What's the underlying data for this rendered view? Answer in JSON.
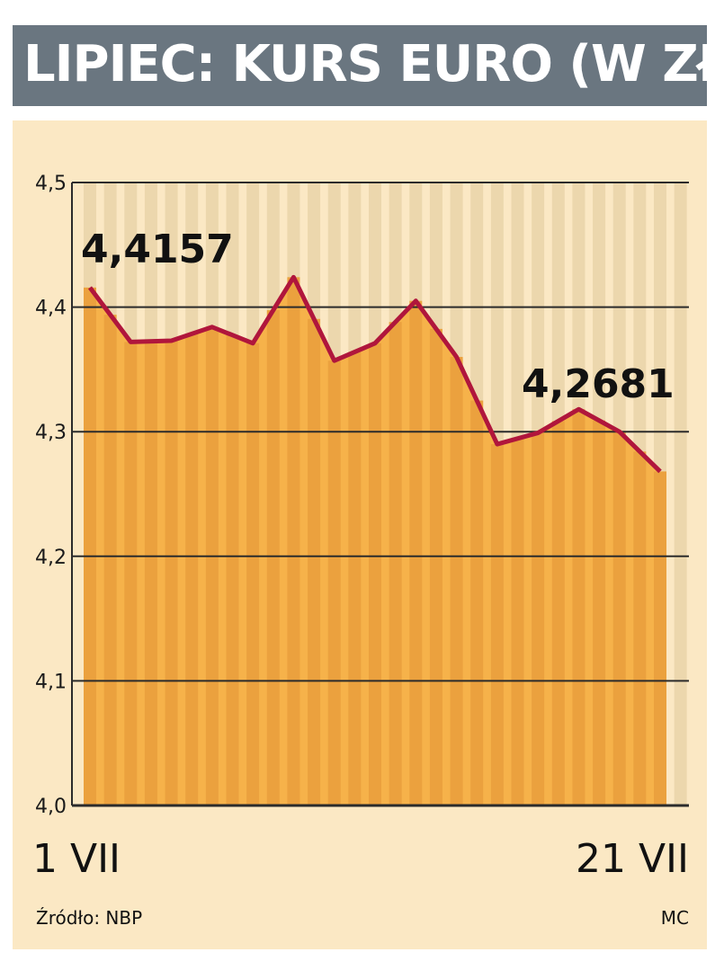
{
  "title": "LIPIEC: KURS EURO (W ZŁ)",
  "source": "Źródło: NBP",
  "credit": "MC",
  "first_label": "1 VII",
  "last_label": "21 VII",
  "start_value_label": "4,4157",
  "end_value_label": "4,2681",
  "colors": {
    "title_bg": "#6a7680",
    "panel_bg": "#fbe8c4",
    "area_fill": "#f6b24a",
    "stripe": "#ecd7ad",
    "line": "#b0163c",
    "grid": "#2b2b2b"
  },
  "chart_data": {
    "type": "area",
    "x": [
      "1 VII",
      "",
      "",
      "",
      "",
      "",
      "",
      "",
      "",
      "",
      "",
      "",
      "",
      "",
      "21 VII"
    ],
    "series": [
      {
        "values": [
          4.4157,
          4.372,
          4.373,
          4.384,
          4.371,
          4.424,
          4.357,
          4.371,
          4.405,
          4.36,
          4.29,
          4.299,
          4.318,
          4.3,
          4.2681
        ]
      }
    ],
    "yticks": [
      "4,0",
      "4,1",
      "4,2",
      "4,3",
      "4,4",
      "4,5"
    ],
    "ylim": [
      4.0,
      4.5
    ],
    "grid": true,
    "annotations": [
      "4,4157",
      "4,2681"
    ]
  }
}
